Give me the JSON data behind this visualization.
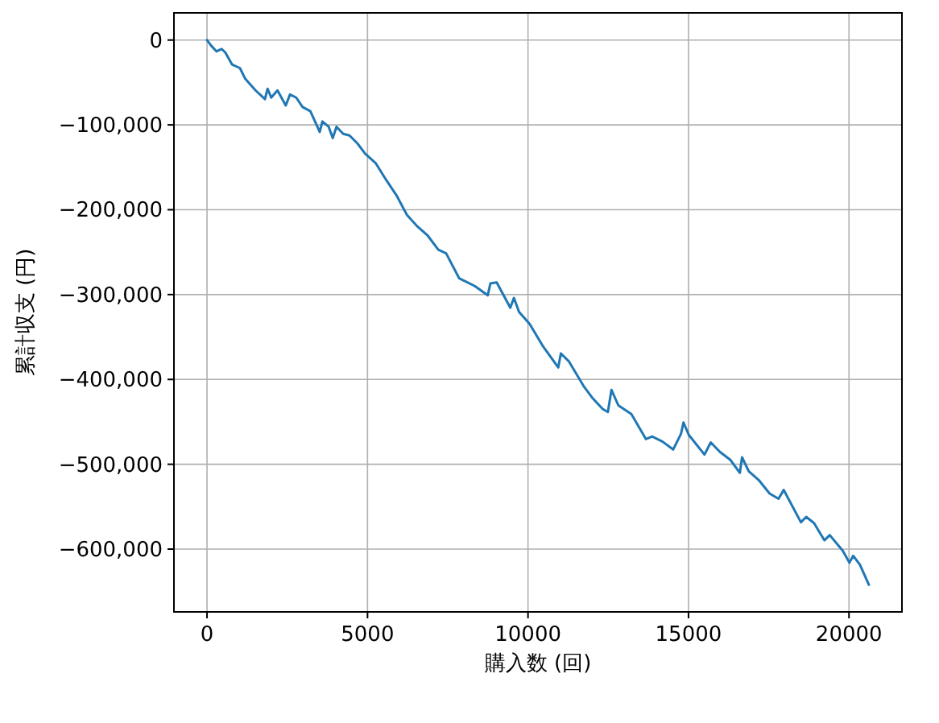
{
  "chart_data": {
    "type": "line",
    "xlabel": "購入数 (回)",
    "ylabel": "累計収支 (円)",
    "color": "#1f77b4",
    "grid": true,
    "xlim": [
      -1030,
      21650
    ],
    "ylim": [
      -674000,
      32000
    ],
    "xticks": [
      0,
      5000,
      10000,
      15000,
      20000
    ],
    "yticks": [
      0,
      {
        "value": -100000,
        "label": "−100,000"
      },
      {
        "value": -200000,
        "label": "−200,000"
      },
      {
        "value": -300000,
        "label": "−300,000"
      },
      {
        "value": -400000,
        "label": "−400,000"
      },
      {
        "value": -500000,
        "label": "−500,000"
      },
      {
        "value": -600000,
        "label": "−600,000"
      }
    ],
    "x": [
      0,
      132,
      293,
      454,
      571,
      780,
      1024,
      1185,
      1512,
      1805,
      1888,
      2000,
      2195,
      2454,
      2585,
      2780,
      2976,
      3220,
      3512,
      3595,
      3790,
      3917,
      4034,
      4244,
      4439,
      4683,
      4927,
      5254,
      5576,
      5902,
      6229,
      6551,
      6878,
      7205,
      7449,
      7854,
      8341,
      8746,
      8829,
      9024,
      9449,
      9561,
      9722,
      10049,
      10454,
      10942,
      11024,
      11268,
      11756,
      12000,
      12327,
      12488,
      12600,
      12815,
      13220,
      13673,
      13868,
      14195,
      14522,
      14766,
      14844,
      15010,
      15498,
      15693,
      15985,
      16307,
      16600,
      16668,
      16878,
      17205,
      17527,
      17805,
      17966,
      18502,
      18668,
      18912,
      19234,
      19400,
      19805,
      20014,
      20132,
      20341,
      20620
    ],
    "values": [
      0,
      -6800,
      -13400,
      -10500,
      -14700,
      -28800,
      -33000,
      -45300,
      -59300,
      -69700,
      -57400,
      -67900,
      -59300,
      -77100,
      -64200,
      -67900,
      -78900,
      -83900,
      -108300,
      -96000,
      -102200,
      -115600,
      -102200,
      -110600,
      -112500,
      -121700,
      -133900,
      -145000,
      -164600,
      -183000,
      -206100,
      -219600,
      -230600,
      -247200,
      -251400,
      -280700,
      -289900,
      -300900,
      -286800,
      -285700,
      -315600,
      -304000,
      -320600,
      -334500,
      -360200,
      -385900,
      -369400,
      -378500,
      -409200,
      -421500,
      -434900,
      -438500,
      -412300,
      -430600,
      -440900,
      -470300,
      -467300,
      -473400,
      -482600,
      -464200,
      -450800,
      -465500,
      -488600,
      -474300,
      -485700,
      -494900,
      -510100,
      -491800,
      -508300,
      -519300,
      -534500,
      -540700,
      -530300,
      -568300,
      -562000,
      -569400,
      -589600,
      -583500,
      -601800,
      -616000,
      -607900,
      -618400,
      -642000
    ]
  }
}
